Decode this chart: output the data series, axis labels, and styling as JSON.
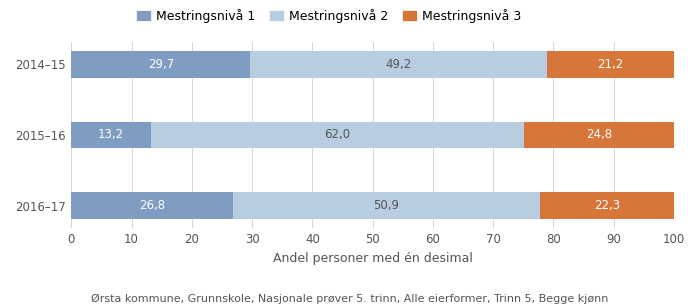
{
  "categories": [
    "2014–15",
    "2015–16",
    "2016–17"
  ],
  "series": [
    {
      "label": "Mestringsnivå 1",
      "values": [
        29.7,
        13.2,
        26.8
      ],
      "color": "#7f9dc3"
    },
    {
      "label": "Mestringsnivå 2",
      "values": [
        49.2,
        62.0,
        50.9
      ],
      "color": "#b8cde0"
    },
    {
      "label": "Mestringsnivå 3",
      "values": [
        21.2,
        24.8,
        22.3
      ],
      "color": "#d6763a"
    }
  ],
  "xlabel": "Andel personer med én desimal",
  "xlim": [
    0,
    100
  ],
  "xticks": [
    0,
    10,
    20,
    30,
    40,
    50,
    60,
    70,
    80,
    90,
    100
  ],
  "footer": "Ørsta kommune, Grunnskole, Nasjonale prøver 5. trinn, Alle eierformer, Trinn 5, Begge kjønn",
  "bar_height": 0.38,
  "background_color": "#ffffff",
  "label_fontsize": 8.5,
  "tick_fontsize": 8.5,
  "legend_fontsize": 9,
  "xlabel_fontsize": 9,
  "footer_fontsize": 8
}
